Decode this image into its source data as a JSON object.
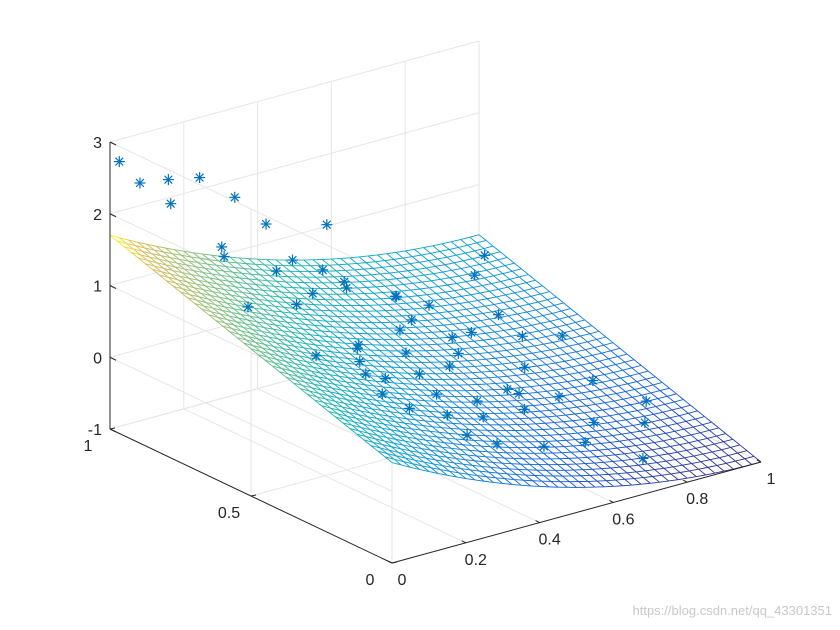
{
  "chart_data": {
    "type": "surface",
    "axes": {
      "x": {
        "range": [
          0,
          1
        ],
        "ticks": [
          0,
          0.2,
          0.4,
          0.6,
          0.8,
          1
        ],
        "tick_labels": [
          "0",
          "0.2",
          "0.4",
          "0.6",
          "0.8",
          "1"
        ]
      },
      "y": {
        "range": [
          0,
          1
        ],
        "ticks": [
          0,
          0.5,
          1
        ],
        "tick_labels": [
          "0",
          "0.5",
          "1"
        ]
      },
      "z": {
        "range": [
          -1,
          3
        ],
        "ticks": [
          -1,
          0,
          1,
          2,
          3
        ],
        "tick_labels": [
          "-1",
          "0",
          "1",
          "2",
          "3"
        ]
      }
    },
    "grid": true,
    "colormap": "parula",
    "surface": {
      "model": "z = 0.4 + 1.3*y - 2.8*x + 1.4*x^2",
      "mesh_resolution": 40
    },
    "scatter": {
      "marker": "asterisk",
      "color": "#0072BD",
      "points": [
        [
          0.01,
          0.98,
          2.75
        ],
        [
          0.02,
          0.92,
          2.55
        ],
        [
          0.05,
          0.85,
          2.35
        ],
        [
          0.12,
          0.95,
          2.4
        ],
        [
          0.22,
          0.97,
          2.25
        ],
        [
          0.3,
          0.95,
          1.9
        ],
        [
          0.4,
          0.97,
          1.35
        ],
        [
          0.58,
          0.99,
          1.05
        ],
        [
          0.03,
          0.55,
          1.5
        ],
        [
          0.08,
          0.7,
          1.85
        ],
        [
          0.15,
          0.8,
          1.7
        ],
        [
          0.2,
          0.6,
          1.2
        ],
        [
          0.1,
          0.4,
          1.0
        ],
        [
          0.25,
          0.45,
          0.8
        ],
        [
          0.32,
          0.7,
          1.0
        ],
        [
          0.38,
          0.85,
          1.1
        ],
        [
          0.45,
          0.75,
          0.8
        ],
        [
          0.5,
          0.9,
          0.7
        ],
        [
          0.35,
          0.3,
          0.3
        ],
        [
          0.42,
          0.5,
          0.4
        ],
        [
          0.55,
          0.65,
          0.4
        ],
        [
          0.62,
          0.8,
          0.35
        ],
        [
          0.7,
          0.9,
          0.05
        ],
        [
          0.75,
          0.85,
          -0.05
        ],
        [
          0.2,
          0.2,
          0.5
        ],
        [
          0.28,
          0.1,
          0.2
        ],
        [
          0.05,
          0.1,
          1.1
        ],
        [
          0.02,
          0.05,
          1.45
        ],
        [
          0.15,
          0.0,
          0.85
        ],
        [
          0.3,
          0.02,
          0.2
        ],
        [
          0.45,
          0.05,
          -0.1
        ],
        [
          0.6,
          0.1,
          -0.35
        ],
        [
          0.68,
          0.0,
          -0.5
        ],
        [
          0.8,
          0.15,
          -0.45
        ],
        [
          0.92,
          0.6,
          -0.25
        ],
        [
          1.0,
          0.98,
          0.05
        ],
        [
          0.9,
          0.8,
          -0.3
        ],
        [
          0.85,
          0.4,
          -0.4
        ],
        [
          0.78,
          0.55,
          -0.4
        ],
        [
          0.65,
          0.4,
          -0.3
        ],
        [
          0.55,
          0.25,
          -0.1
        ],
        [
          0.5,
          0.45,
          0.2
        ],
        [
          0.4,
          0.2,
          0.1
        ],
        [
          0.33,
          0.55,
          0.55
        ],
        [
          0.6,
          0.55,
          0.05
        ],
        [
          0.72,
          0.35,
          -0.35
        ],
        [
          0.85,
          0.65,
          -0.25
        ],
        [
          0.95,
          0.95,
          -0.1
        ],
        [
          0.18,
          0.35,
          0.9
        ],
        [
          0.26,
          0.75,
          1.3
        ],
        [
          0.48,
          0.6,
          0.45
        ],
        [
          0.58,
          0.35,
          -0.05
        ],
        [
          0.7,
          0.2,
          -0.4
        ],
        [
          0.88,
          0.25,
          -0.45
        ],
        [
          0.75,
          0.7,
          -0.15
        ],
        [
          0.52,
          0.85,
          0.6
        ],
        [
          0.66,
          0.65,
          0.0
        ],
        [
          0.12,
          0.25,
          1.0
        ],
        [
          0.38,
          0.4,
          0.35
        ],
        [
          0.46,
          0.3,
          0.05
        ]
      ]
    }
  },
  "watermark": "https://blog.csdn.net/qq_43301351"
}
